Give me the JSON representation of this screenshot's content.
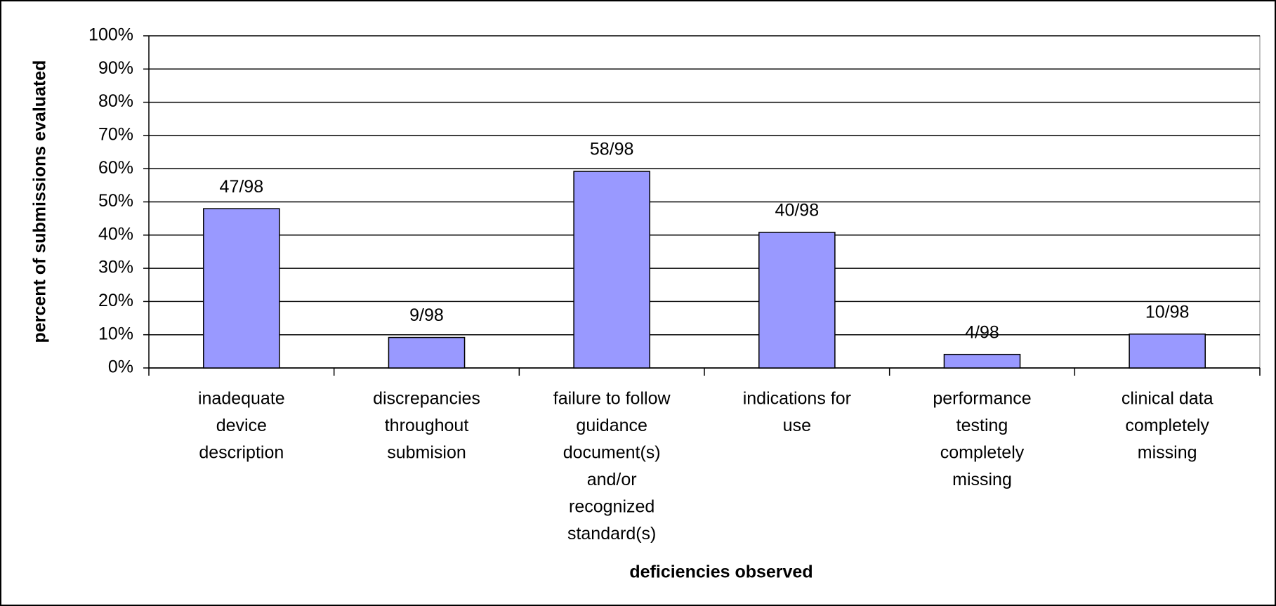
{
  "chart_data": {
    "type": "bar",
    "x_label": "deficiencies observed",
    "y_label": "percent of submissions evaluated",
    "categories": [
      [
        "inadequate",
        "device",
        "description"
      ],
      [
        "discrepancies",
        "throughout",
        "submision"
      ],
      [
        "failure to follow",
        "guidance",
        "document(s)",
        "and/or",
        "recognized",
        "standard(s)"
      ],
      [
        "indications for",
        "use"
      ],
      [
        "performance",
        "testing",
        "completely",
        "missing"
      ],
      [
        "clinical data",
        "completely",
        "missing"
      ]
    ],
    "values": [
      47.96,
      9.18,
      59.18,
      40.82,
      4.08,
      10.2
    ],
    "value_labels": [
      "47/98",
      "9/98",
      "58/98",
      "40/98",
      "4/98",
      "10/98"
    ],
    "color": "#9999ff",
    "ylim": [
      0,
      100
    ],
    "yticks": [
      {
        "value": 0,
        "label": "0%"
      },
      {
        "value": 10,
        "label": "10%"
      },
      {
        "value": 20,
        "label": "20%"
      },
      {
        "value": 30,
        "label": "30%"
      },
      {
        "value": 40,
        "label": "40%"
      },
      {
        "value": 50,
        "label": "50%"
      },
      {
        "value": 60,
        "label": "60%"
      },
      {
        "value": 70,
        "label": "70%"
      },
      {
        "value": 80,
        "label": "80%"
      },
      {
        "value": 90,
        "label": "90%"
      },
      {
        "value": 100,
        "label": "100%"
      }
    ],
    "grid": true
  }
}
